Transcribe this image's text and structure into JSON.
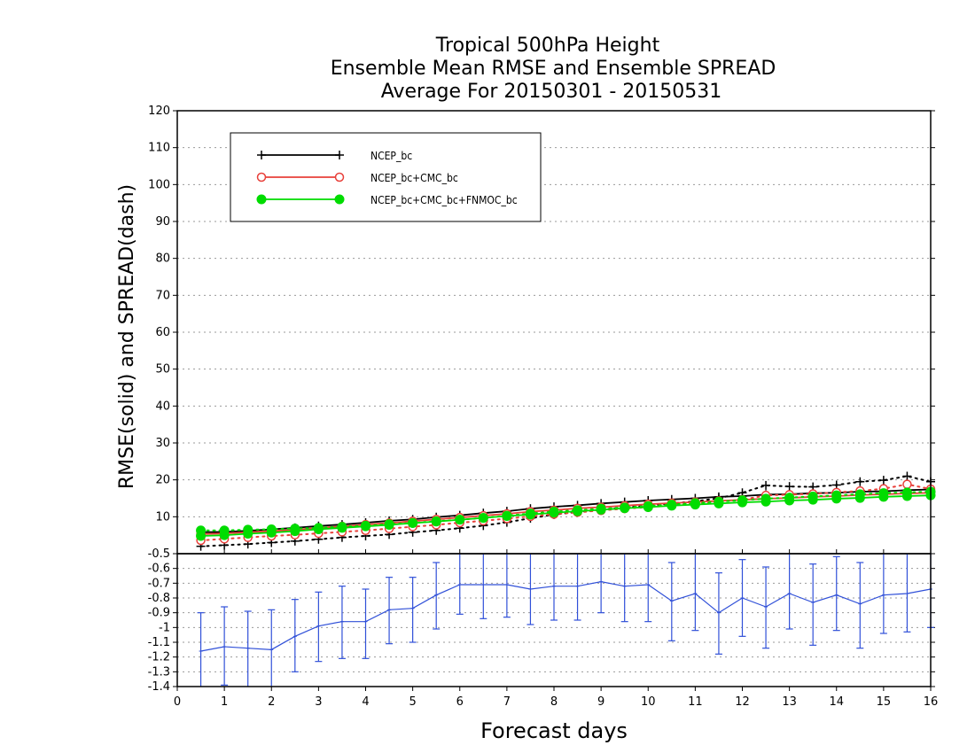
{
  "chart_data": {
    "type": "line",
    "title_lines": [
      "Tropical 500hPa Height",
      "Ensemble Mean RMSE and Ensemble SPREAD",
      "Average For 20150301 - 20150531"
    ],
    "xlabel": "Forecast days",
    "ylabel": "RMSE(solid) and SPREAD(dash)",
    "xlim": [
      0,
      16
    ],
    "ylim": [
      0,
      120
    ],
    "x_ticks": [
      "0",
      "1",
      "2",
      "3",
      "4",
      "5",
      "6",
      "7",
      "8",
      "9",
      "10",
      "11",
      "12",
      "13",
      "14",
      "15",
      "16"
    ],
    "y_ticks": [
      "10",
      "20",
      "30",
      "40",
      "50",
      "60",
      "70",
      "80",
      "90",
      "100",
      "110",
      "120"
    ],
    "grid": true,
    "legend_position": "top-left",
    "x": [
      0.5,
      1,
      1.5,
      2,
      2.5,
      3,
      3.5,
      4,
      4.5,
      5,
      5.5,
      6,
      6.5,
      7,
      7.5,
      8,
      8.5,
      9,
      9.5,
      10,
      10.5,
      11,
      11.5,
      12,
      12.5,
      13,
      13.5,
      14,
      14.5,
      15,
      15.5,
      16
    ],
    "series": [
      {
        "name": "NCEP_bc",
        "color": "#000000",
        "marker": "plus",
        "rmse": [
          5.8,
          5.9,
          6.2,
          6.6,
          7.0,
          7.5,
          7.9,
          8.4,
          8.9,
          9.3,
          9.9,
          10.4,
          11.0,
          11.5,
          12.2,
          12.7,
          13.1,
          13.6,
          14.0,
          14.4,
          14.7,
          15.0,
          15.4,
          15.6,
          16.0,
          16.1,
          16.4,
          16.5,
          16.8,
          16.9,
          17.2,
          17.4
        ],
        "spread": [
          2.0,
          2.3,
          2.6,
          3.0,
          3.4,
          3.9,
          4.4,
          4.8,
          5.2,
          5.8,
          6.3,
          6.9,
          7.6,
          8.5,
          9.6,
          10.6,
          11.3,
          11.9,
          12.5,
          13.0,
          13.6,
          14.2,
          15.0,
          16.5,
          18.5,
          18.2,
          18.1,
          18.6,
          19.5,
          19.9,
          21.0,
          19.5
        ]
      },
      {
        "name": "NCEP_bc+CMC_bc",
        "color": "#e8403a",
        "marker": "open-circle",
        "rmse": [
          5.3,
          5.5,
          5.8,
          6.1,
          6.5,
          7.0,
          7.4,
          7.9,
          8.3,
          8.8,
          9.3,
          9.8,
          10.3,
          10.8,
          11.4,
          11.8,
          12.3,
          12.6,
          13.0,
          13.4,
          13.7,
          14.0,
          14.3,
          14.6,
          14.9,
          15.1,
          15.4,
          15.6,
          15.9,
          16.1,
          16.3,
          16.5
        ],
        "spread": [
          3.6,
          4.0,
          4.4,
          4.8,
          5.1,
          5.5,
          5.9,
          6.3,
          6.8,
          7.3,
          7.8,
          8.4,
          8.9,
          9.5,
          10.1,
          10.7,
          11.2,
          11.7,
          12.2,
          12.6,
          13.1,
          13.6,
          14.1,
          14.6,
          15.8,
          16.0,
          16.2,
          16.6,
          17.0,
          17.6,
          18.8,
          17.5
        ]
      },
      {
        "name": "NCEP_bc+CMC_bc+FNMOC_bc",
        "color": "#00dc00",
        "marker": "filled-circle",
        "rmse": [
          4.8,
          5.0,
          5.4,
          5.7,
          6.1,
          6.6,
          7.0,
          7.4,
          7.8,
          8.3,
          8.7,
          9.2,
          9.7,
          10.2,
          10.6,
          11.1,
          11.5,
          11.9,
          12.3,
          12.6,
          13.0,
          13.3,
          13.6,
          13.9,
          14.1,
          14.4,
          14.6,
          14.9,
          15.1,
          15.4,
          15.6,
          15.8
        ],
        "spread": [
          6.3,
          6.3,
          6.5,
          6.6,
          6.8,
          7.0,
          7.3,
          7.6,
          8.0,
          8.3,
          8.8,
          9.2,
          9.7,
          10.3,
          10.9,
          11.4,
          11.8,
          12.2,
          12.5,
          12.9,
          13.3,
          13.7,
          14.1,
          14.5,
          14.9,
          15.2,
          15.5,
          15.8,
          16.1,
          16.4,
          16.6,
          16.8
        ]
      }
    ],
    "lower_panel": {
      "type": "line-errorbar",
      "color": "#3050d8",
      "ylim": [
        -1.4,
        -0.5
      ],
      "y_ticks": [
        "-0.5",
        "-0.6",
        "-0.7",
        "-0.8",
        "-0.9",
        "-1",
        "-1.1",
        "-1.2",
        "-1.3",
        "-1.4"
      ],
      "values": [
        -1.16,
        -1.13,
        -1.14,
        -1.15,
        -1.06,
        -0.99,
        -0.96,
        -0.96,
        -0.88,
        -0.87,
        -0.78,
        -0.71,
        -0.71,
        -0.71,
        -0.74,
        -0.72,
        -0.72,
        -0.69,
        -0.72,
        -0.71,
        -0.82,
        -0.77,
        -0.9,
        -0.8,
        -0.86,
        -0.77,
        -0.83,
        -0.78,
        -0.84,
        -0.78,
        -0.77,
        -0.74
      ],
      "err_low": [
        -1.42,
        -1.39,
        -1.4,
        -1.42,
        -1.3,
        -1.23,
        -1.21,
        -1.21,
        -1.11,
        -1.1,
        -1.01,
        -0.91,
        -0.94,
        -0.93,
        -0.98,
        -0.95,
        -0.95,
        -0.9,
        -0.96,
        -0.96,
        -1.09,
        -1.02,
        -1.18,
        -1.06,
        -1.14,
        -1.01,
        -1.12,
        -1.02,
        -1.14,
        -1.04,
        -1.03,
        -1.0
      ],
      "err_high": [
        -0.9,
        -0.86,
        -0.89,
        -0.88,
        -0.81,
        -0.76,
        -0.72,
        -0.74,
        -0.66,
        -0.66,
        -0.56,
        -0.5,
        -0.5,
        -0.5,
        -0.5,
        -0.5,
        -0.5,
        -0.5,
        -0.5,
        -0.5,
        -0.56,
        -0.5,
        -0.63,
        -0.54,
        -0.59,
        -0.5,
        -0.57,
        -0.52,
        -0.56,
        -0.5,
        -0.5,
        -0.5
      ]
    }
  }
}
